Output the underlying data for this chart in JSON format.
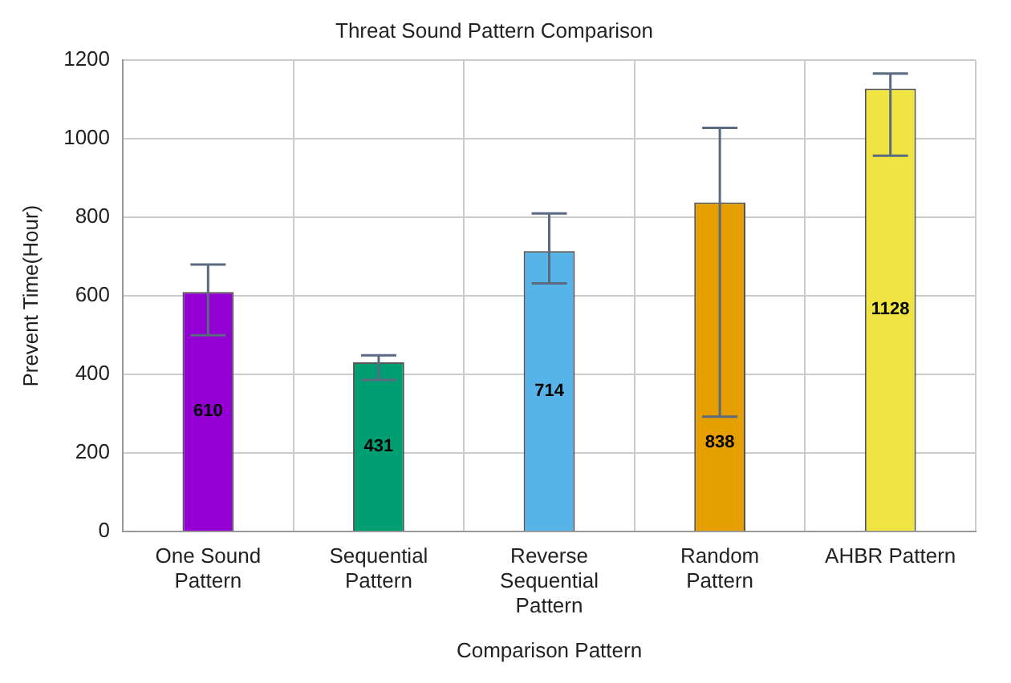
{
  "chart_data": {
    "type": "bar",
    "title": "Threat Sound Pattern Comparison",
    "xlabel": "Comparison Pattern",
    "ylabel": "Prevent Time(Hour)",
    "categories": [
      "One Sound Pattern",
      "Sequential Pattern",
      "Reverse Sequential Pattern",
      "Random Pattern",
      "AHBR Pattern"
    ],
    "values": [
      610,
      431,
      714,
      838,
      1128
    ],
    "colors": [
      "#9400d3",
      "#009e73",
      "#56b4e9",
      "#e69f00",
      "#f0e442"
    ],
    "errors": [
      [
        500,
        680
      ],
      [
        386,
        449
      ],
      [
        632,
        810
      ],
      [
        293,
        1028
      ],
      [
        957,
        1166
      ]
    ],
    "ylim": [
      0,
      1200
    ],
    "yticks": [
      0,
      200,
      400,
      600,
      800,
      1000,
      1200
    ],
    "grid": true,
    "data_labels": true
  }
}
